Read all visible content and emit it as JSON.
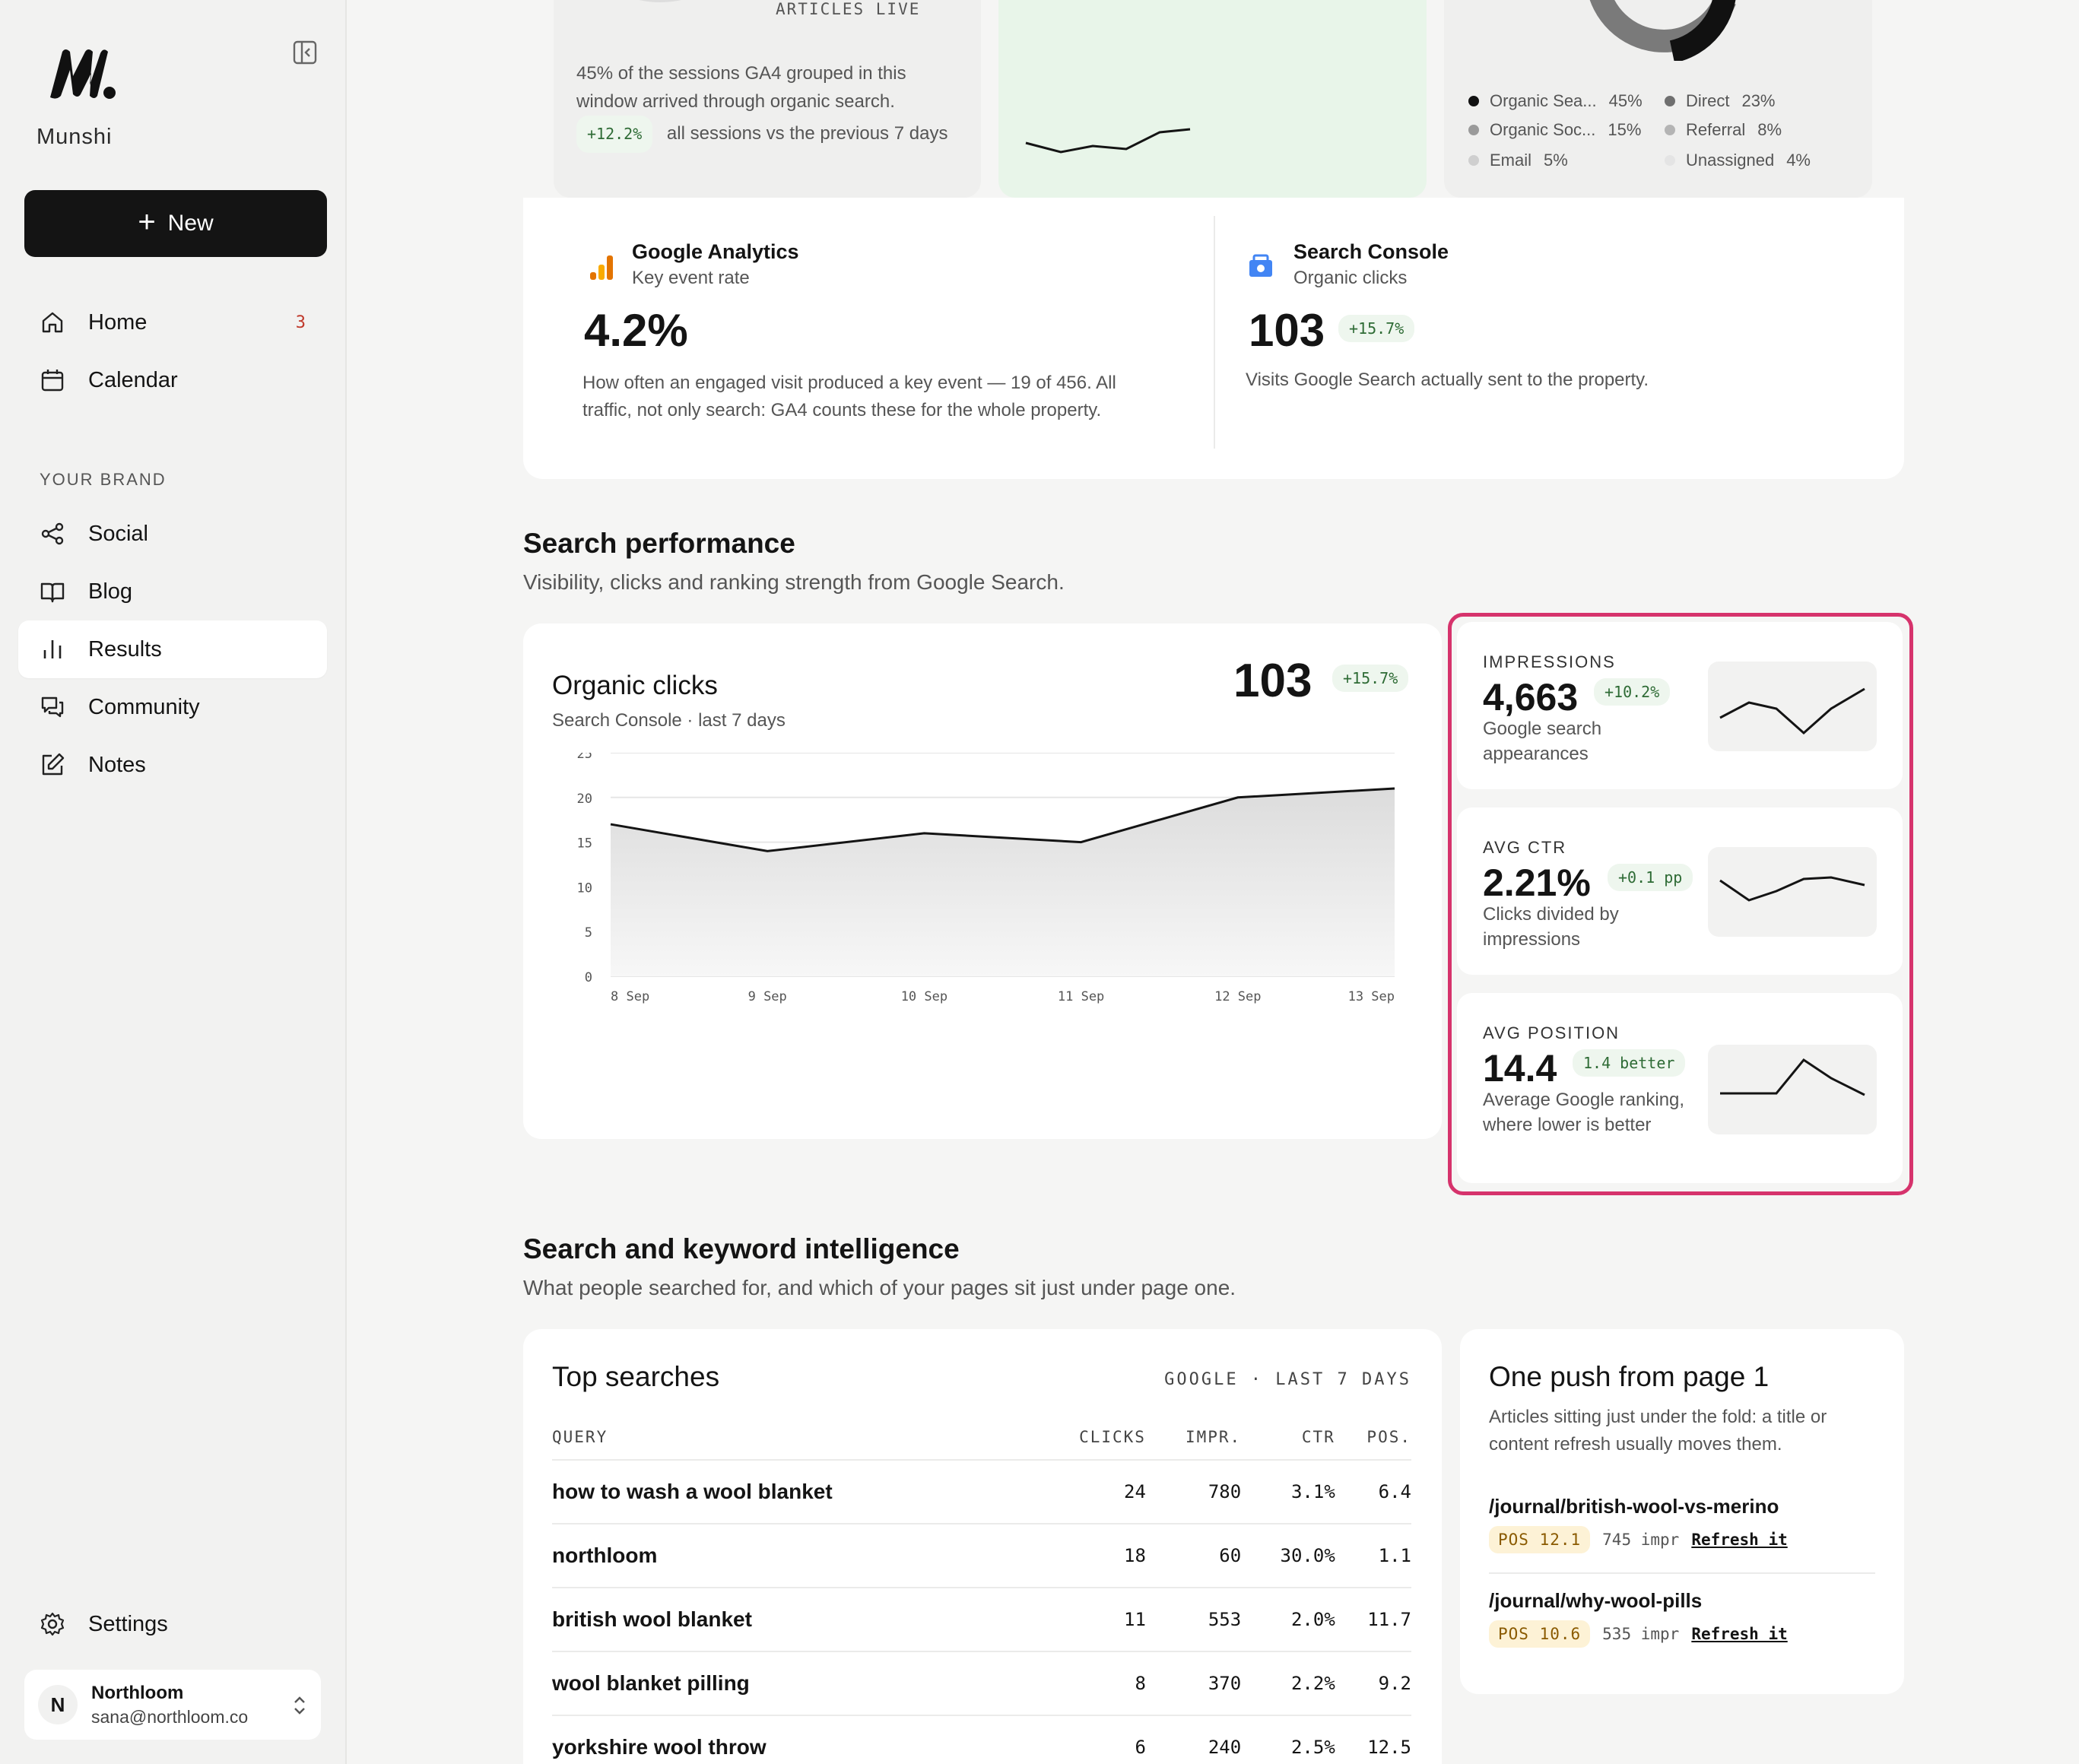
{
  "app": {
    "brand": "Munshi",
    "new_label": "New"
  },
  "sidebar": {
    "items": [
      {
        "label": "Home",
        "badge": "3"
      },
      {
        "label": "Calendar"
      }
    ],
    "section_label": "YOUR BRAND",
    "brand_items": [
      {
        "label": "Social"
      },
      {
        "label": "Blog"
      },
      {
        "label": "Results"
      },
      {
        "label": "Community"
      },
      {
        "label": "Notes"
      }
    ],
    "settings_label": "Settings",
    "account": {
      "initial": "N",
      "name": "Northloom",
      "email": "sana@northloom.co"
    }
  },
  "top": {
    "articles_live_label": "ARTICLES LIVE",
    "organic_share_text": "45% of the sessions GA4 grouped in this window arrived through organic search.",
    "organic_share_delta": "+12.2%",
    "organic_share_delta_text": "all sessions vs the previous 7 days",
    "legend": [
      {
        "label": "Organic Sea...",
        "pct": "45%",
        "color": "#111111"
      },
      {
        "label": "Direct",
        "pct": "23%",
        "color": "#6f6f6f"
      },
      {
        "label": "Organic Soc...",
        "pct": "15%",
        "color": "#9a9a9a"
      },
      {
        "label": "Referral",
        "pct": "8%",
        "color": "#b4b4b4"
      },
      {
        "label": "Email",
        "pct": "5%",
        "color": "#cfcfcf"
      },
      {
        "label": "Unassigned",
        "pct": "4%",
        "color": "#e4e4e4"
      }
    ]
  },
  "kpis": {
    "ga": {
      "title": "Google Analytics",
      "subtitle": "Key event rate",
      "value": "4.2%",
      "desc": "How often an engaged visit produced a key event — 19 of 456. All traffic, not only search: GA4 counts these for the whole property."
    },
    "sc": {
      "title": "Search Console",
      "subtitle": "Organic clicks",
      "value": "103",
      "delta": "+15.7%",
      "desc": "Visits Google Search actually sent to the property."
    }
  },
  "search_perf": {
    "title": "Search performance",
    "subtitle": "Visibility, clicks and ranking strength from Google Search.",
    "clicks_card": {
      "title": "Organic clicks",
      "subtitle": "Search Console · last 7 days",
      "value": "103",
      "delta": "+15.7%"
    },
    "metrics": [
      {
        "label": "IMPRESSIONS",
        "value": "4,663",
        "delta": "+10.2%",
        "desc": "Google search appearances"
      },
      {
        "label": "AVG CTR",
        "value": "2.21%",
        "delta": "+0.1 pp",
        "desc": "Clicks divided by impressions"
      },
      {
        "label": "AVG POSITION",
        "value": "14.4",
        "delta": "1.4 better",
        "desc": "Average Google ranking, where lower is better"
      }
    ]
  },
  "chart_data": {
    "type": "area",
    "x": [
      "8 Sep",
      "9 Sep",
      "10 Sep",
      "11 Sep",
      "12 Sep",
      "13 Sep"
    ],
    "series": [
      {
        "values": [
          17,
          14,
          16,
          15,
          20,
          21
        ]
      }
    ],
    "ylim": [
      0,
      25
    ],
    "yticks": [
      0,
      5,
      10,
      15,
      20,
      25
    ],
    "grid": true
  },
  "keywords": {
    "title": "Search and keyword intelligence",
    "subtitle": "What people searched for, and which of your pages sit just under page one.",
    "top_searches": {
      "title": "Top searches",
      "meta": "GOOGLE · LAST 7 DAYS",
      "columns": [
        "QUERY",
        "CLICKS",
        "IMPR.",
        "CTR",
        "POS."
      ],
      "rows": [
        [
          "how to wash a wool blanket",
          "24",
          "780",
          "3.1%",
          "6.4"
        ],
        [
          "northloom",
          "18",
          "60",
          "30.0%",
          "1.1"
        ],
        [
          "british wool blanket",
          "11",
          "553",
          "2.0%",
          "11.7"
        ],
        [
          "wool blanket pilling",
          "8",
          "370",
          "2.2%",
          "9.2"
        ],
        [
          "yorkshire wool throw",
          "6",
          "240",
          "2.5%",
          "12.5"
        ]
      ]
    },
    "push": {
      "title": "One push from page 1",
      "subtitle": "Articles sitting just under the fold: a title or content refresh usually moves them.",
      "items": [
        {
          "path": "/journal/british-wool-vs-merino",
          "pos": "POS 12.1",
          "impr": "745 impr",
          "action": "Refresh it"
        },
        {
          "path": "/journal/why-wool-pills",
          "pos": "POS 10.6",
          "impr": "535 impr",
          "action": "Refresh it"
        }
      ]
    }
  }
}
